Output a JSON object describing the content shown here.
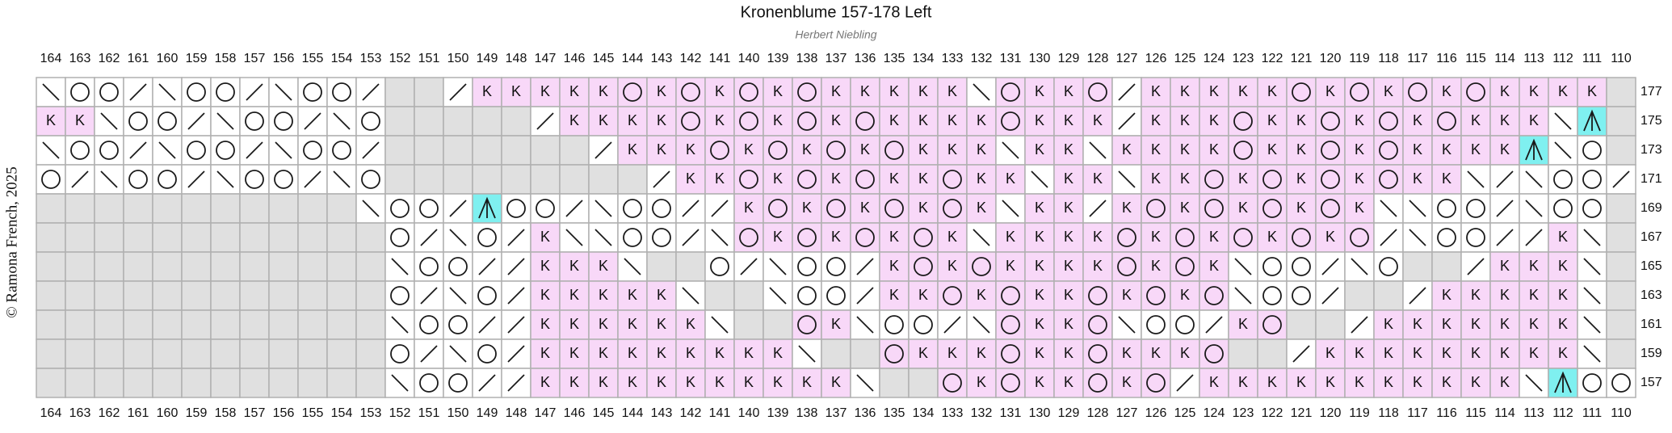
{
  "header": {
    "title": "Kronenblume 157-178 Left",
    "subtitle": "Herbert Niebling",
    "copyright": "© Ramona French, 2025"
  },
  "columns": [
    164,
    163,
    162,
    161,
    160,
    159,
    158,
    157,
    156,
    155,
    154,
    153,
    152,
    151,
    150,
    149,
    148,
    147,
    146,
    145,
    144,
    143,
    142,
    141,
    140,
    139,
    138,
    137,
    136,
    135,
    134,
    133,
    132,
    131,
    130,
    129,
    128,
    127,
    126,
    125,
    124,
    123,
    122,
    121,
    120,
    119,
    118,
    117,
    116,
    115,
    114,
    113,
    112,
    111,
    110
  ],
  "rows": [
    {
      "label": 177,
      "cells": [
        "\\",
        "O",
        "O",
        "/",
        "\\",
        "O",
        "O",
        "/",
        "\\",
        "O",
        "O",
        "/",
        "-",
        "-",
        "/",
        "K",
        "K",
        "K",
        "K",
        "K",
        "O",
        "K",
        "O",
        "K",
        "O",
        "K",
        "O",
        "K",
        "K",
        "K",
        "K",
        "K",
        "\\",
        "O",
        "K",
        "K",
        "O",
        "/",
        "K",
        "K",
        "K",
        "K",
        "K",
        "O",
        "K",
        "O",
        "K",
        "O",
        "K",
        "O",
        "K",
        "K",
        "K",
        "K",
        "-"
      ]
    },
    {
      "label": 175,
      "cells": [
        "K",
        "K",
        "\\",
        "O",
        "O",
        "/",
        "\\",
        "O",
        "O",
        "/",
        "\\",
        "O",
        "-",
        "-",
        "-",
        "-",
        "-",
        "/",
        "K",
        "K",
        "K",
        "K",
        "O",
        "K",
        "O",
        "K",
        "O",
        "K",
        "O",
        "K",
        "K",
        "K",
        "K",
        "O",
        "K",
        "K",
        "K",
        "/",
        "K",
        "K",
        "K",
        "O",
        "K",
        "K",
        "O",
        "K",
        "O",
        "K",
        "O",
        "K",
        "K",
        "K",
        "\\",
        "A",
        "-"
      ]
    },
    {
      "label": 173,
      "cells": [
        "\\",
        "O",
        "O",
        "/",
        "\\",
        "O",
        "O",
        "/",
        "\\",
        "O",
        "O",
        "/",
        "-",
        "-",
        "-",
        "-",
        "-",
        "-",
        "-",
        "/",
        "K",
        "K",
        "K",
        "O",
        "K",
        "O",
        "K",
        "O",
        "K",
        "O",
        "K",
        "K",
        "K",
        "\\",
        "K",
        "K",
        "\\",
        "K",
        "K",
        "K",
        "K",
        "O",
        "K",
        "K",
        "O",
        "K",
        "O",
        "K",
        "K",
        "K",
        "K",
        "A",
        "\\",
        "O",
        "-"
      ]
    },
    {
      "label": 171,
      "cells": [
        "O",
        "/",
        "\\",
        "O",
        "O",
        "/",
        "\\",
        "O",
        "O",
        "/",
        "\\",
        "O",
        "-",
        "-",
        "-",
        "-",
        "-",
        "-",
        "-",
        "-",
        "-",
        "/",
        "K",
        "K",
        "O",
        "K",
        "O",
        "K",
        "O",
        "K",
        "K",
        "O",
        "K",
        "K",
        "\\",
        "K",
        "K",
        "\\",
        "K",
        "K",
        "O",
        "K",
        "O",
        "K",
        "O",
        "K",
        "O",
        "K",
        "K",
        "\\",
        "/",
        "\\",
        "O",
        "O",
        "/"
      ]
    },
    {
      "label": 169,
      "cells": [
        "-",
        "-",
        "-",
        "-",
        "-",
        "-",
        "-",
        "-",
        "-",
        "-",
        "-",
        "\\",
        "O",
        "O",
        "/",
        "A",
        "O",
        "O",
        "/",
        "\\",
        "O",
        "O",
        "/",
        "/",
        "K",
        "O",
        "K",
        "O",
        "K",
        "O",
        "K",
        "O",
        "K",
        "\\",
        "K",
        "K",
        "/",
        "K",
        "O",
        "K",
        "O",
        "K",
        "O",
        "K",
        "O",
        "K",
        "\\",
        "\\",
        "O",
        "O",
        "/",
        "\\",
        "O",
        "O",
        "-"
      ]
    },
    {
      "label": 167,
      "cells": [
        "-",
        "-",
        "-",
        "-",
        "-",
        "-",
        "-",
        "-",
        "-",
        "-",
        "-",
        "-",
        "O",
        "/",
        "\\",
        "O",
        "/",
        "K",
        "\\",
        "\\",
        "O",
        "O",
        "/",
        "\\",
        "O",
        "K",
        "O",
        "K",
        "O",
        "K",
        "O",
        "K",
        "\\",
        "K",
        "K",
        "K",
        "K",
        "O",
        "K",
        "O",
        "K",
        "O",
        "K",
        "O",
        "K",
        "O",
        "/",
        "\\",
        "O",
        "O",
        "/",
        "/",
        "K",
        "\\",
        "-"
      ]
    },
    {
      "label": 165,
      "cells": [
        "-",
        "-",
        "-",
        "-",
        "-",
        "-",
        "-",
        "-",
        "-",
        "-",
        "-",
        "-",
        "\\",
        "O",
        "O",
        "/",
        "/",
        "K",
        "K",
        "K",
        "\\",
        "-",
        "-",
        "O",
        "/",
        "\\",
        "O",
        "O",
        "/",
        "K",
        "O",
        "K",
        "O",
        "K",
        "K",
        "K",
        "K",
        "O",
        "K",
        "O",
        "K",
        "\\",
        "O",
        "O",
        "/",
        "\\",
        "O",
        "-",
        "-",
        "/",
        "K",
        "K",
        "K",
        "\\",
        "-"
      ]
    },
    {
      "label": 163,
      "cells": [
        "-",
        "-",
        "-",
        "-",
        "-",
        "-",
        "-",
        "-",
        "-",
        "-",
        "-",
        "-",
        "O",
        "/",
        "\\",
        "O",
        "/",
        "K",
        "K",
        "K",
        "K",
        "K",
        "\\",
        "-",
        "-",
        "\\",
        "O",
        "O",
        "/",
        "K",
        "K",
        "O",
        "K",
        "O",
        "K",
        "K",
        "O",
        "K",
        "O",
        "K",
        "O",
        "\\",
        "O",
        "O",
        "/",
        "-",
        "-",
        "/",
        "K",
        "K",
        "K",
        "K",
        "K",
        "\\",
        "-"
      ]
    },
    {
      "label": 161,
      "cells": [
        "-",
        "-",
        "-",
        "-",
        "-",
        "-",
        "-",
        "-",
        "-",
        "-",
        "-",
        "-",
        "\\",
        "O",
        "O",
        "/",
        "/",
        "K",
        "K",
        "K",
        "K",
        "K",
        "K",
        "\\",
        "-",
        "-",
        "O",
        "K",
        "\\",
        "O",
        "O",
        "/",
        "\\",
        "O",
        "K",
        "K",
        "O",
        "\\",
        "O",
        "O",
        "/",
        "K",
        "O",
        "-",
        "-",
        "/",
        "K",
        "K",
        "K",
        "K",
        "K",
        "K",
        "K",
        "\\",
        "-"
      ]
    },
    {
      "label": 159,
      "cells": [
        "-",
        "-",
        "-",
        "-",
        "-",
        "-",
        "-",
        "-",
        "-",
        "-",
        "-",
        "-",
        "O",
        "/",
        "\\",
        "O",
        "/",
        "K",
        "K",
        "K",
        "K",
        "K",
        "K",
        "K",
        "K",
        "K",
        "\\",
        "-",
        "-",
        "O",
        "K",
        "K",
        "K",
        "O",
        "K",
        "K",
        "O",
        "K",
        "K",
        "K",
        "O",
        "-",
        "-",
        "/",
        "K",
        "K",
        "K",
        "K",
        "K",
        "K",
        "K",
        "K",
        "K",
        "\\",
        "-"
      ]
    },
    {
      "label": 157,
      "cells": [
        "-",
        "-",
        "-",
        "-",
        "-",
        "-",
        "-",
        "-",
        "-",
        "-",
        "-",
        "-",
        "\\",
        "O",
        "O",
        "/",
        "/",
        "K",
        "K",
        "K",
        "K",
        "K",
        "K",
        "K",
        "K",
        "K",
        "K",
        "K",
        "\\",
        "-",
        "-",
        "O",
        "K",
        "O",
        "K",
        "K",
        "O",
        "K",
        "O",
        "/",
        "K",
        "K",
        "K",
        "K",
        "K",
        "K",
        "K",
        "K",
        "K",
        "K",
        "K",
        "\\",
        "A",
        "O",
        "O"
      ]
    }
  ]
}
